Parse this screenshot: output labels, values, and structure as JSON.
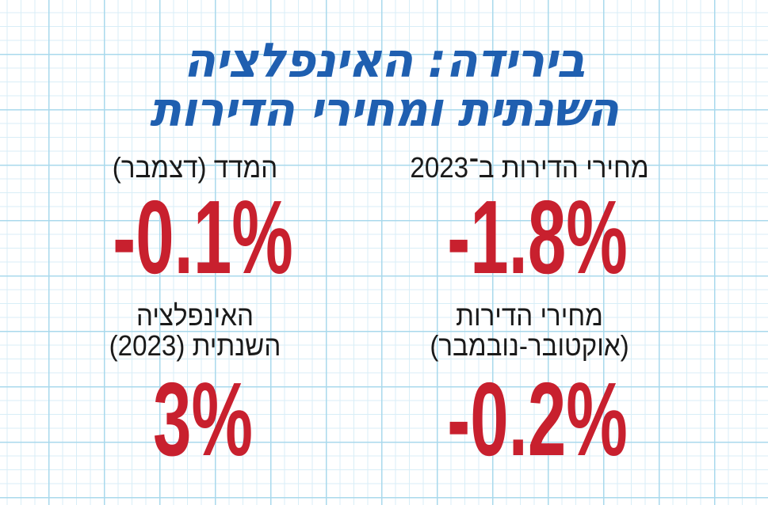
{
  "headline": {
    "line1": "בירידה: האינפלציה",
    "line2": "השנתית ומחירי הדירות"
  },
  "stats": {
    "housing_2023": {
      "label": "מחירי הדירות ב־2023",
      "value": "-1.8%"
    },
    "index_december": {
      "label": "המדד (דצמבר)",
      "value": "-0.1%"
    },
    "housing_oct_nov": {
      "label_line1": "מחירי הדירות",
      "label_line2": "(אוקטובר-נובמבר)",
      "value": "-0.2%"
    },
    "annual_inflation": {
      "label_line1": "האינפלציה",
      "label_line2": "השנתית (2023)",
      "value": "3%"
    }
  },
  "colors": {
    "headline": "#1f5fb0",
    "value": "#c8202e",
    "grid": "#a9d9ec"
  }
}
